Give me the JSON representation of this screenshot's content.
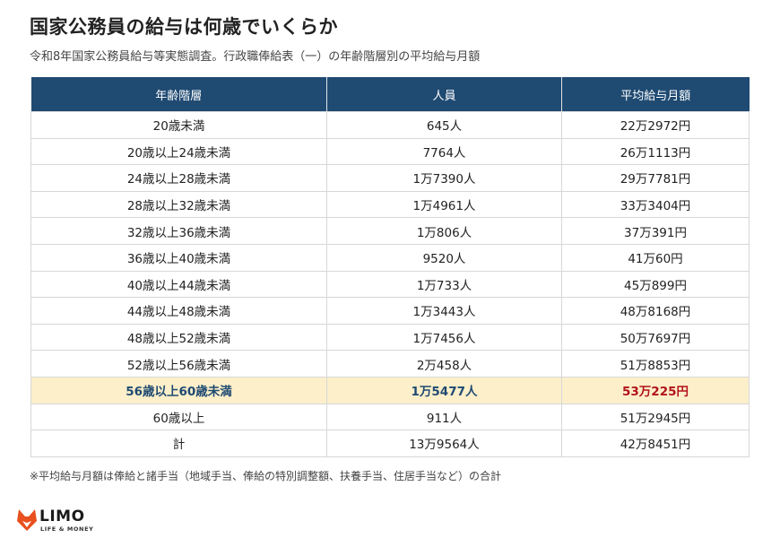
{
  "title": "国家公務員の給与は何歳でいくらか",
  "subtitle": "令和8年国家公務員給与等実態調査。行政職俸給表（一）の年齢階層別の平均給与月額",
  "table": {
    "headers": [
      "年齢階層",
      "人員",
      "平均給与月額"
    ],
    "rows": [
      {
        "age": "20歳未満",
        "staff": "645人",
        "salary": "22万2972円"
      },
      {
        "age": "20歳以上24歳未満",
        "staff": "7764人",
        "salary": "26万1113円"
      },
      {
        "age": "24歳以上28歳未満",
        "staff": "1万7390人",
        "salary": "29万7781円"
      },
      {
        "age": "28歳以上32歳未満",
        "staff": "1万4961人",
        "salary": "33万3404円"
      },
      {
        "age": "32歳以上36歳未満",
        "staff": "1万806人",
        "salary": "37万391円"
      },
      {
        "age": "36歳以上40歳未満",
        "staff": "9520人",
        "salary": "41万60円"
      },
      {
        "age": "40歳以上44歳未満",
        "staff": "1万733人",
        "salary": "45万899円"
      },
      {
        "age": "44歳以上48歳未満",
        "staff": "1万3443人",
        "salary": "48万8168円"
      },
      {
        "age": "48歳以上52歳未満",
        "staff": "1万7456人",
        "salary": "50万7697円"
      },
      {
        "age": "52歳以上56歳未満",
        "staff": "2万458人",
        "salary": "51万8853円"
      },
      {
        "age": "56歳以上60歳未満",
        "staff": "1万5477人",
        "salary": "53万225円"
      },
      {
        "age": "60歳以上",
        "staff": "911人",
        "salary": "51万2945円"
      },
      {
        "age": "計",
        "staff": "13万9564人",
        "salary": "42万8451円"
      }
    ],
    "highlight_row_index": 10,
    "header_color": "#1f4a72",
    "highlight_bg": "#fcefc9",
    "highlight_text_color": "#1f4a72",
    "highlight_salary_color": "#b1121b"
  },
  "note": "※平均給与月額は俸給と諸手当（地域手当、俸給の特別調整額、扶養手当、住居手当など）の合計",
  "logo": {
    "name": "LIMO",
    "tagline": "LIFE & MONEY",
    "icon": "fox-head-icon",
    "accent_color": "#e8501e"
  }
}
